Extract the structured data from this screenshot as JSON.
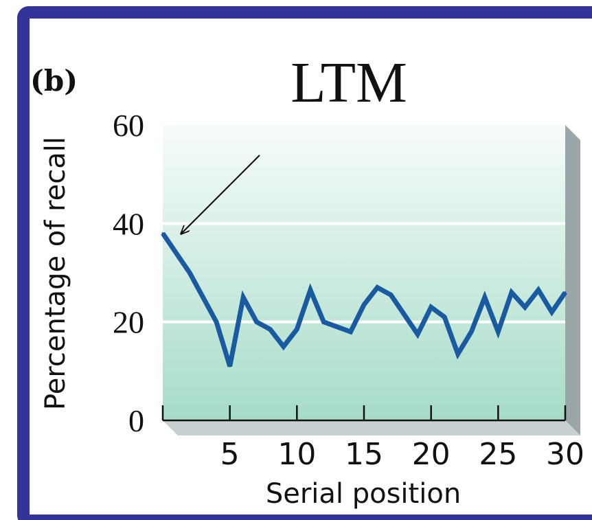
{
  "panel_label": "(b)",
  "chart_data": {
    "type": "line",
    "title": "LTM",
    "xlabel": "Serial position",
    "ylabel": "Percentage of recall",
    "xlim": [
      0,
      30
    ],
    "ylim": [
      0,
      60
    ],
    "x_ticks": [
      5,
      10,
      15,
      20,
      25,
      30
    ],
    "x_tick_labels": [
      "5",
      "10",
      "15",
      "20",
      "25",
      "30"
    ],
    "y_ticks": [
      0,
      20,
      40,
      60
    ],
    "y_tick_labels": [
      "0",
      "20",
      "40",
      "60"
    ],
    "grid": "horizontal at 20 and 40",
    "legend": "none",
    "series": [
      {
        "x": [
          0,
          1,
          2,
          3,
          4,
          5,
          6,
          7,
          8,
          9,
          10,
          11,
          12,
          13,
          14,
          15,
          16,
          17,
          18,
          19,
          20,
          21,
          22,
          23,
          24,
          25,
          26,
          27,
          28,
          29,
          30
        ],
        "values": [
          38,
          34,
          30,
          25,
          20,
          11,
          25,
          20,
          18.5,
          15,
          18.5,
          26.5,
          20,
          19,
          18,
          23.5,
          27,
          25.5,
          21.5,
          17.5,
          23,
          21,
          13.5,
          18,
          25,
          18,
          26,
          23,
          26.5,
          22,
          26
        ]
      }
    ],
    "annotation": "arrow pointing to the first serial position"
  },
  "colors": {
    "frame": "#33339a",
    "line": "#1a5aa0",
    "plot_top": "#f7fcfa",
    "plot_bottom": "#a6dcc8",
    "side_wall": "#9aa6a8",
    "floor": "#c7cfd0"
  }
}
